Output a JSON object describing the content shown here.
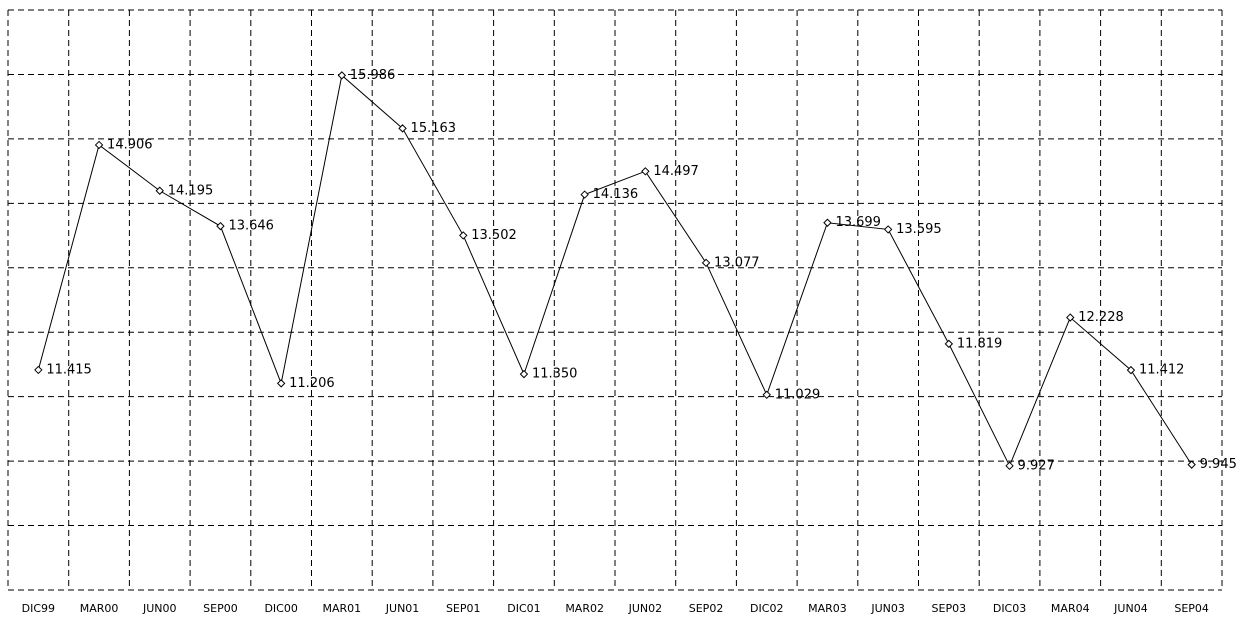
{
  "chart_data": {
    "type": "line",
    "categories": [
      "DIC99",
      "MAR00",
      "JUN00",
      "SEP00",
      "DIC00",
      "MAR01",
      "JUN01",
      "SEP01",
      "DIC01",
      "MAR02",
      "JUN02",
      "SEP02",
      "DIC02",
      "MAR03",
      "JUN03",
      "SEP03",
      "DIC03",
      "MAR04",
      "JUN04",
      "SEP04"
    ],
    "values": [
      11.415,
      14.906,
      14.195,
      13.646,
      11.206,
      15.986,
      15.163,
      13.502,
      11.35,
      14.136,
      14.497,
      13.077,
      11.029,
      13.699,
      13.595,
      11.819,
      9.927,
      12.228,
      11.412,
      9.945
    ],
    "value_labels": [
      "11.415",
      "14.906",
      "14.195",
      "13.646",
      "11.206",
      "15.986",
      "15.163",
      "13.502",
      "11.350",
      "14.136",
      "14.497",
      "13.077",
      "11.029",
      "13.699",
      "13.595",
      "11.819",
      "9.927",
      "12.228",
      "11.412",
      "9.945"
    ],
    "color": "#000000",
    "ylim": [
      8,
      17
    ],
    "yticks": [
      8,
      9,
      10,
      11,
      12,
      13,
      14,
      15,
      16,
      17
    ],
    "grid": true
  }
}
